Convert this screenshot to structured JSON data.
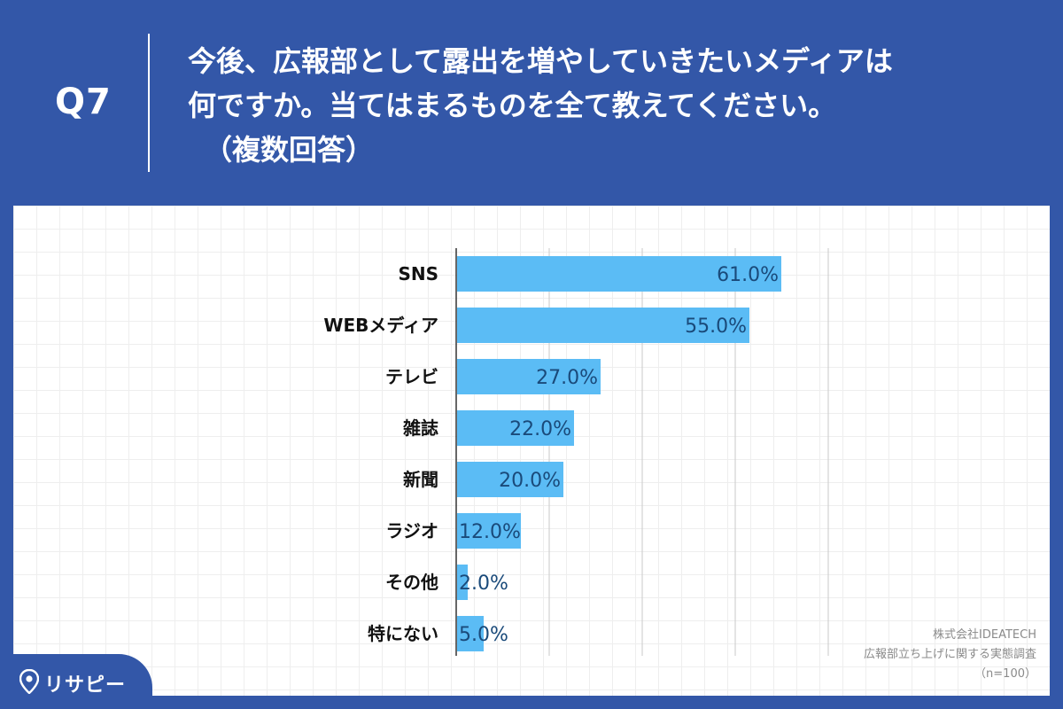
{
  "header": {
    "q_label": "Q7",
    "title_line1": "今後、広報部として露出を増やしていきたいメディアは",
    "title_line2": "何ですか。当てはまるものを全て教えてください。",
    "title_line3": "（複数回答）"
  },
  "chart_data": {
    "type": "bar",
    "orientation": "horizontal",
    "categories": [
      "SNS",
      "WEBメディア",
      "テレビ",
      "雑誌",
      "新聞",
      "ラジオ",
      "その他",
      "特にない"
    ],
    "values": [
      61.0,
      55.0,
      27.0,
      22.0,
      20.0,
      12.0,
      2.0,
      5.0
    ],
    "value_labels": [
      "61.0%",
      "55.0%",
      "27.0%",
      "22.0%",
      "20.0%",
      "12.0%",
      "2.0%",
      "5.0%"
    ],
    "xlim": [
      0,
      70
    ],
    "gridlines": [
      0,
      17.5,
      35,
      52.5,
      70
    ],
    "bar_color": "#5bbcf5",
    "label_color": "#1a4a7a",
    "title": "",
    "xlabel": "",
    "ylabel": ""
  },
  "source": {
    "line1": "株式会社IDEATECH",
    "line2": "広報部立ち上げに関する実態調査",
    "line3": "（n=100）"
  },
  "logo": {
    "text": "リサピー",
    "icon": "location-pin-icon"
  },
  "colors": {
    "header_bg": "#3357a8",
    "bar": "#5bbcf5",
    "bar_label": "#1a4a7a"
  }
}
